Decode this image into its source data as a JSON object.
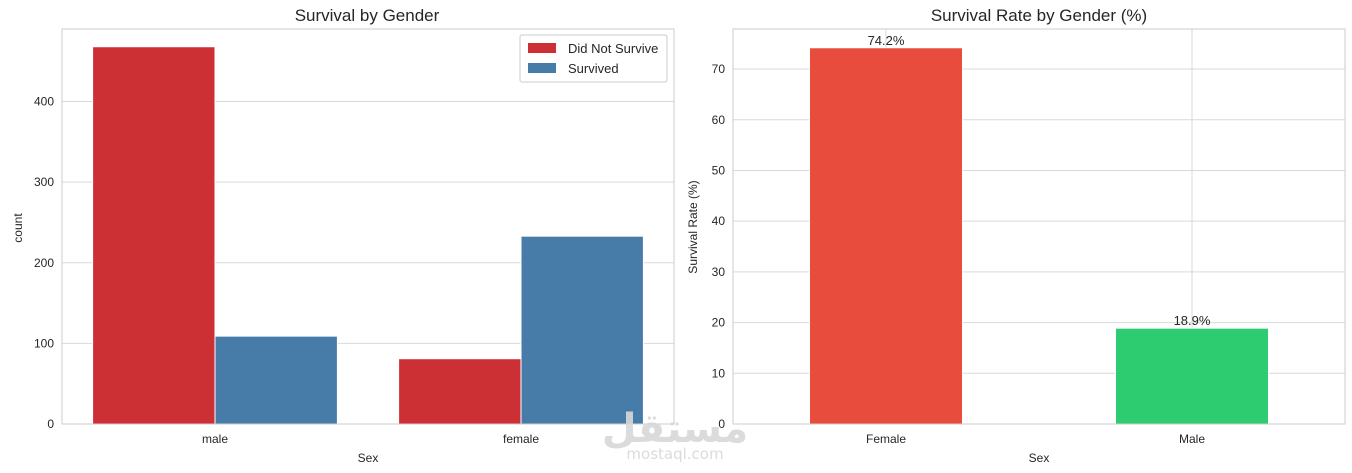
{
  "chart_data": [
    {
      "type": "bar",
      "title": "Survival by Gender",
      "xlabel": "Sex",
      "ylabel": "count",
      "categories": [
        "male",
        "female"
      ],
      "series": [
        {
          "name": "Did Not Survive",
          "values": [
            468,
            81
          ],
          "color": "#cc3035"
        },
        {
          "name": "Survived",
          "values": [
            109,
            233
          ],
          "color": "#477ca8"
        }
      ],
      "ylim": [
        0,
        490
      ],
      "yticks": [
        0,
        100,
        200,
        300,
        400
      ],
      "grid": "horizontal",
      "legend": "top-right"
    },
    {
      "type": "bar",
      "title": "Survival Rate by Gender (%)",
      "xlabel": "Sex",
      "ylabel": "Survival Rate (%)",
      "categories": [
        "Female",
        "Male"
      ],
      "values": [
        74.2,
        18.9
      ],
      "data_labels": [
        "74.2%",
        "18.9%"
      ],
      "colors": [
        "#e74c3c",
        "#2ecc71"
      ],
      "ylim": [
        0,
        77.9
      ],
      "yticks": [
        0,
        10,
        20,
        30,
        40,
        50,
        60,
        70
      ],
      "grid": "both",
      "legend": "none"
    }
  ],
  "watermark": {
    "arabic": "مستقل",
    "latin": "mostaql.com"
  }
}
